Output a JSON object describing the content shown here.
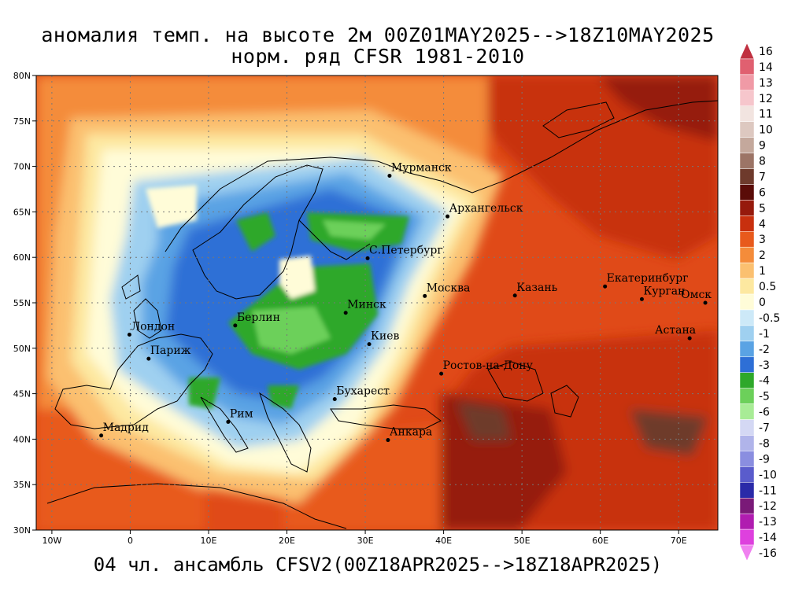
{
  "title": {
    "line1": "аномалия темп. на высоте 2м 00Z01MAY2025-->18Z10MAY2025",
    "line2": "норм. ряд CFSR 1981-2010"
  },
  "footer": "04 чл. ансамбль CFSV2(00Z18APR2025-->18Z18APR2025)",
  "map": {
    "lon_range": [
      -12,
      75
    ],
    "lat_range": [
      30,
      80
    ],
    "lat_ticks": [
      "30N",
      "35N",
      "40N",
      "45N",
      "50N",
      "55N",
      "60N",
      "65N",
      "70N",
      "75N",
      "80N"
    ],
    "lon_ticks": [
      "10W",
      "0",
      "10E",
      "20E",
      "30E",
      "40E",
      "50E",
      "60E",
      "70E"
    ],
    "cities": [
      {
        "name": "Мурманск",
        "lon": 33.1,
        "lat": 68.97
      },
      {
        "name": "Архангельск",
        "lon": 40.5,
        "lat": 64.5
      },
      {
        "name": "С.Петербург",
        "lon": 30.3,
        "lat": 59.9
      },
      {
        "name": "Москва",
        "lon": 37.6,
        "lat": 55.75
      },
      {
        "name": "Казань",
        "lon": 49.1,
        "lat": 55.8
      },
      {
        "name": "Екатеринбург",
        "lon": 60.6,
        "lat": 56.8
      },
      {
        "name": "Курган",
        "lon": 65.3,
        "lat": 55.4
      },
      {
        "name": "Омск",
        "lon": 73.4,
        "lat": 55.0
      },
      {
        "name": "Астана",
        "lon": 71.4,
        "lat": 51.1
      },
      {
        "name": "Минск",
        "lon": 27.5,
        "lat": 53.9
      },
      {
        "name": "Киев",
        "lon": 30.5,
        "lat": 50.45
      },
      {
        "name": "Берлин",
        "lon": 13.4,
        "lat": 52.5
      },
      {
        "name": "Лондон",
        "lon": -0.1,
        "lat": 51.5
      },
      {
        "name": "Париж",
        "lon": 2.35,
        "lat": 48.85
      },
      {
        "name": "Ростов-на-Дону",
        "lon": 39.7,
        "lat": 47.2
      },
      {
        "name": "Бухарест",
        "lon": 26.1,
        "lat": 44.4
      },
      {
        "name": "Рим",
        "lon": 12.5,
        "lat": 41.9
      },
      {
        "name": "Мадрид",
        "lon": -3.7,
        "lat": 40.4
      },
      {
        "name": "Анкара",
        "lon": 32.9,
        "lat": 39.9
      }
    ]
  },
  "colorbar": {
    "labels": [
      "16",
      "14",
      "13",
      "12",
      "11",
      "10",
      "9",
      "8",
      "7",
      "6",
      "5",
      "4",
      "3",
      "2",
      "1",
      "0.5",
      "0",
      "-0.5",
      "-1",
      "-2",
      "-3",
      "-4",
      "-5",
      "-6",
      "-7",
      "-8",
      "-9",
      "-10",
      "-11",
      "-12",
      "-13",
      "-14",
      "-16"
    ],
    "colors": [
      "#c03040",
      "#e06070",
      "#f09aa6",
      "#f6c6cc",
      "#f2e4e0",
      "#ddc8c0",
      "#c4a89c",
      "#9c7466",
      "#6e3a2c",
      "#5a0c08",
      "#961a0c",
      "#c8300e",
      "#e85a1c",
      "#f48c3a",
      "#fbc070",
      "#fde8a0",
      "#fffcd8",
      "#cde9f8",
      "#9fd0f0",
      "#5aa3e4",
      "#2e6fd6",
      "#2ea82a",
      "#6cd05a",
      "#a8ec96",
      "#d4d8f4",
      "#b0b4ea",
      "#8a8ee0",
      "#5a5ccc",
      "#2a2aa8",
      "#7a1a78",
      "#b01cb0",
      "#de40de",
      "#f080f0"
    ]
  }
}
